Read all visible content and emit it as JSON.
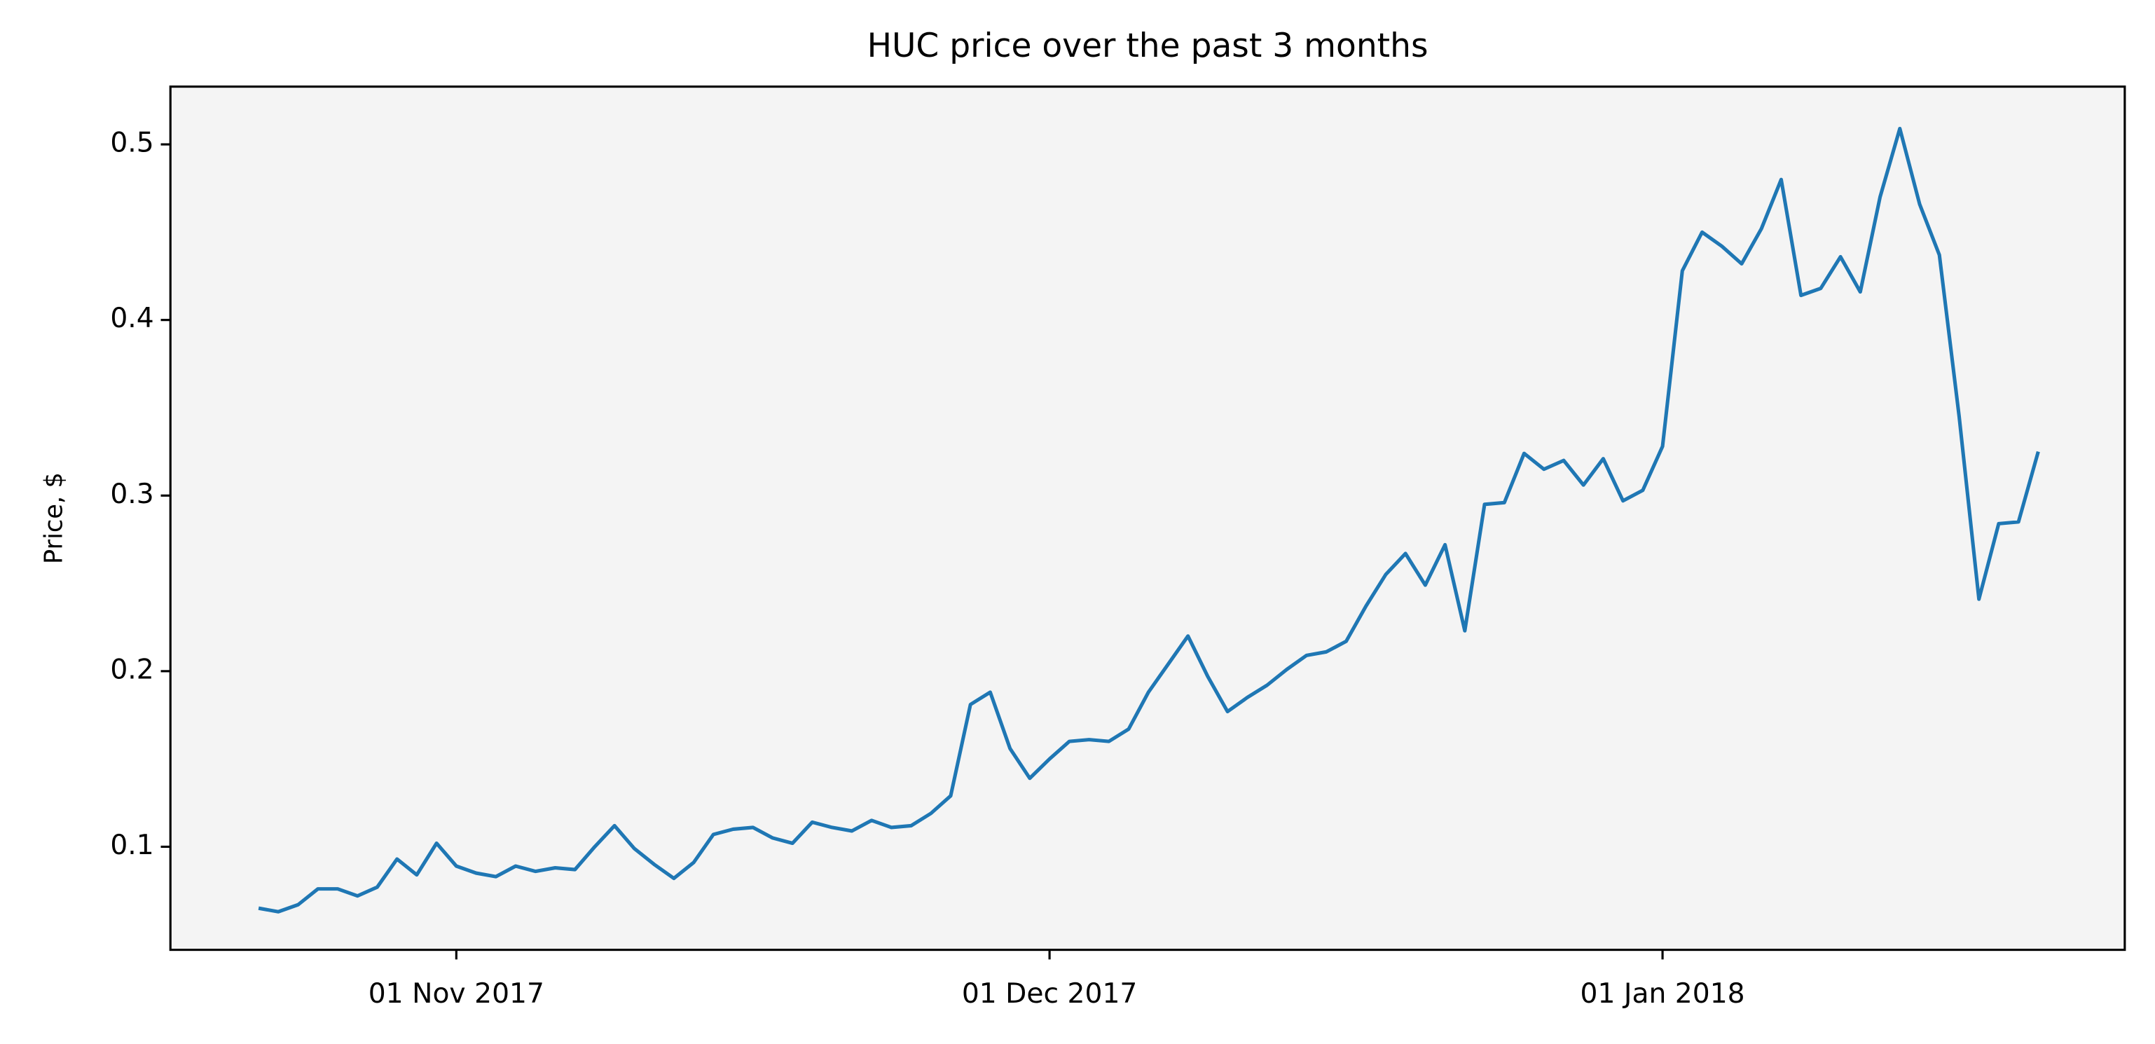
{
  "chart_data": {
    "type": "line",
    "title": "HUC price over the past 3 months",
    "ylabel": "Price, $",
    "color": "#1f77b4",
    "background": "#f4f4f4",
    "x": [
      "2017-10-22",
      "2017-10-23",
      "2017-10-24",
      "2017-10-25",
      "2017-10-26",
      "2017-10-27",
      "2017-10-28",
      "2017-10-29",
      "2017-10-30",
      "2017-10-31",
      "2017-11-01",
      "2017-11-02",
      "2017-11-03",
      "2017-11-04",
      "2017-11-05",
      "2017-11-06",
      "2017-11-07",
      "2017-11-08",
      "2017-11-09",
      "2017-11-10",
      "2017-11-11",
      "2017-11-12",
      "2017-11-13",
      "2017-11-14",
      "2017-11-15",
      "2017-11-16",
      "2017-11-17",
      "2017-11-18",
      "2017-11-19",
      "2017-11-20",
      "2017-11-21",
      "2017-11-22",
      "2017-11-23",
      "2017-11-24",
      "2017-11-25",
      "2017-11-26",
      "2017-11-27",
      "2017-11-28",
      "2017-11-29",
      "2017-11-30",
      "2017-12-01",
      "2017-12-02",
      "2017-12-03",
      "2017-12-04",
      "2017-12-05",
      "2017-12-06",
      "2017-12-07",
      "2017-12-08",
      "2017-12-09",
      "2017-12-10",
      "2017-12-11",
      "2017-12-12",
      "2017-12-13",
      "2017-12-14",
      "2017-12-15",
      "2017-12-16",
      "2017-12-17",
      "2017-12-18",
      "2017-12-19",
      "2017-12-20",
      "2017-12-21",
      "2017-12-22",
      "2017-12-23",
      "2017-12-24",
      "2017-12-25",
      "2017-12-26",
      "2017-12-27",
      "2017-12-28",
      "2017-12-29",
      "2017-12-30",
      "2017-12-31",
      "2018-01-01",
      "2018-01-02",
      "2018-01-03",
      "2018-01-04",
      "2018-01-05",
      "2018-01-06",
      "2018-01-07",
      "2018-01-08",
      "2018-01-09",
      "2018-01-10",
      "2018-01-11",
      "2018-01-12",
      "2018-01-13",
      "2018-01-14",
      "2018-01-15",
      "2018-01-16",
      "2018-01-17",
      "2018-01-18",
      "2018-01-19",
      "2018-01-20"
    ],
    "values": [
      0.065,
      0.063,
      0.067,
      0.076,
      0.076,
      0.072,
      0.077,
      0.093,
      0.084,
      0.102,
      0.089,
      0.085,
      0.083,
      0.089,
      0.086,
      0.088,
      0.087,
      0.1,
      0.112,
      0.099,
      0.09,
      0.082,
      0.091,
      0.107,
      0.11,
      0.111,
      0.105,
      0.102,
      0.114,
      0.111,
      0.109,
      0.115,
      0.111,
      0.112,
      0.119,
      0.129,
      0.181,
      0.188,
      0.156,
      0.139,
      0.15,
      0.16,
      0.161,
      0.16,
      0.167,
      0.188,
      0.204,
      0.22,
      0.197,
      0.177,
      0.185,
      0.192,
      0.201,
      0.209,
      0.211,
      0.217,
      0.237,
      0.255,
      0.267,
      0.249,
      0.272,
      0.223,
      0.295,
      0.296,
      0.324,
      0.315,
      0.32,
      0.306,
      0.321,
      0.297,
      0.303,
      0.328,
      0.428,
      0.45,
      0.442,
      0.432,
      0.452,
      0.48,
      0.414,
      0.418,
      0.436,
      0.416,
      0.47,
      0.509,
      0.466,
      0.437,
      0.345,
      0.241,
      0.284,
      0.285,
      0.325
    ],
    "xlim": [
      "2017-10-17T13:00",
      "2018-01-24T09:00"
    ],
    "xticks": [
      {
        "value": "2017-11-01",
        "label": "01 Nov 2017"
      },
      {
        "value": "2017-12-01",
        "label": "01 Dec 2017"
      },
      {
        "value": "2018-01-01",
        "label": "01 Jan 2018"
      }
    ],
    "ylim": [
      0.0413,
      0.5329
    ],
    "yticks": [
      0.1,
      0.2,
      0.3,
      0.4,
      0.5
    ],
    "grid": false
  }
}
